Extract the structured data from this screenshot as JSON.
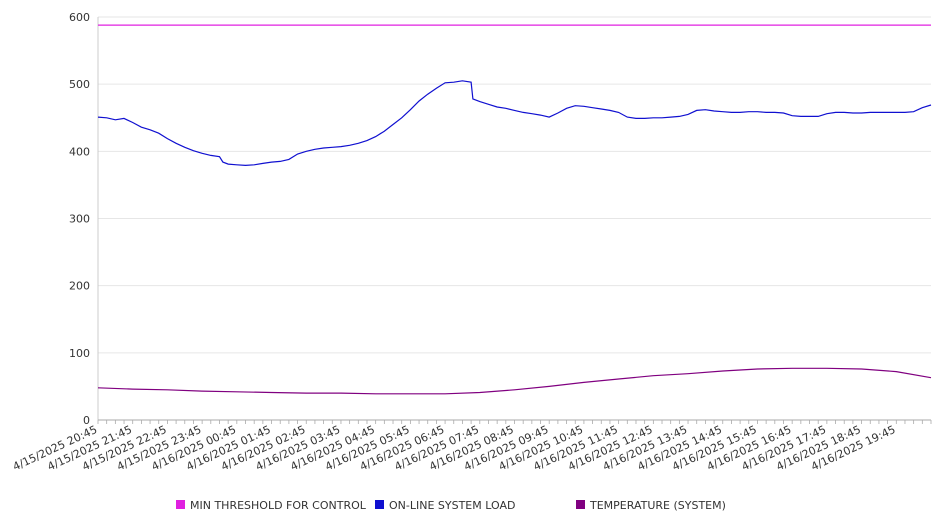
{
  "chart_data": {
    "type": "line",
    "ylim": [
      0,
      600
    ],
    "yticks": [
      0,
      100,
      200,
      300,
      400,
      500,
      600
    ],
    "x_tick_labels": [
      "4/15/2025 20:45",
      "4/15/2025 21:45",
      "4/15/2025 22:45",
      "4/15/2025 23:45",
      "4/16/2025 00:45",
      "4/16/2025 01:45",
      "4/16/2025 02:45",
      "4/16/2025 03:45",
      "4/16/2025 04:45",
      "4/16/2025 05:45",
      "4/16/2025 06:45",
      "4/16/2025 07:45",
      "4/16/2025 08:45",
      "4/16/2025 09:45",
      "4/16/2025 10:45",
      "4/16/2025 11:45",
      "4/16/2025 12:45",
      "4/16/2025 13:45",
      "4/16/2025 14:45",
      "4/16/2025 15:45",
      "4/16/2025 16:45",
      "4/16/2025 17:45",
      "4/16/2025 18:45",
      "4/16/2025 19:45"
    ],
    "x_hours_span": 24,
    "grid": true,
    "legend_position": "bottom",
    "series": [
      {
        "name": "MIN THRESHOLD FOR CONTROL",
        "color": "#e020e0",
        "points": [
          [
            0,
            588
          ],
          [
            24,
            588
          ]
        ]
      },
      {
        "name": "ON-LINE SYSTEM LOAD",
        "color": "#1010d0",
        "points": [
          [
            0,
            451
          ],
          [
            0.25,
            450
          ],
          [
            0.5,
            447
          ],
          [
            0.75,
            449
          ],
          [
            1,
            443
          ],
          [
            1.25,
            436
          ],
          [
            1.5,
            432
          ],
          [
            1.75,
            427
          ],
          [
            2,
            419
          ],
          [
            2.25,
            412
          ],
          [
            2.5,
            406
          ],
          [
            2.75,
            401
          ],
          [
            3,
            397
          ],
          [
            3.25,
            394
          ],
          [
            3.5,
            392
          ],
          [
            3.6,
            384
          ],
          [
            3.75,
            381
          ],
          [
            4,
            380
          ],
          [
            4.25,
            379
          ],
          [
            4.5,
            380
          ],
          [
            4.75,
            382
          ],
          [
            5,
            384
          ],
          [
            5.25,
            385
          ],
          [
            5.5,
            388
          ],
          [
            5.75,
            396
          ],
          [
            6,
            400
          ],
          [
            6.25,
            403
          ],
          [
            6.5,
            405
          ],
          [
            6.75,
            406
          ],
          [
            7,
            407
          ],
          [
            7.25,
            409
          ],
          [
            7.5,
            412
          ],
          [
            7.75,
            416
          ],
          [
            8,
            422
          ],
          [
            8.25,
            430
          ],
          [
            8.5,
            440
          ],
          [
            8.75,
            450
          ],
          [
            9,
            462
          ],
          [
            9.25,
            475
          ],
          [
            9.5,
            485
          ],
          [
            9.75,
            494
          ],
          [
            10,
            502
          ],
          [
            10.25,
            503
          ],
          [
            10.5,
            505
          ],
          [
            10.75,
            503
          ],
          [
            10.8,
            478
          ],
          [
            11,
            474
          ],
          [
            11.25,
            470
          ],
          [
            11.5,
            466
          ],
          [
            11.75,
            464
          ],
          [
            12,
            461
          ],
          [
            12.25,
            458
          ],
          [
            12.5,
            456
          ],
          [
            12.75,
            454
          ],
          [
            13,
            451
          ],
          [
            13.25,
            457
          ],
          [
            13.5,
            464
          ],
          [
            13.75,
            468
          ],
          [
            14,
            467
          ],
          [
            14.25,
            465
          ],
          [
            14.5,
            463
          ],
          [
            14.75,
            461
          ],
          [
            15,
            458
          ],
          [
            15.25,
            451
          ],
          [
            15.5,
            449
          ],
          [
            15.75,
            449
          ],
          [
            16,
            450
          ],
          [
            16.25,
            450
          ],
          [
            16.5,
            451
          ],
          [
            16.75,
            452
          ],
          [
            17,
            455
          ],
          [
            17.25,
            461
          ],
          [
            17.5,
            462
          ],
          [
            17.75,
            460
          ],
          [
            18,
            459
          ],
          [
            18.25,
            458
          ],
          [
            18.5,
            458
          ],
          [
            18.75,
            459
          ],
          [
            19,
            459
          ],
          [
            19.25,
            458
          ],
          [
            19.5,
            458
          ],
          [
            19.75,
            457
          ],
          [
            20,
            453
          ],
          [
            20.25,
            452
          ],
          [
            20.5,
            452
          ],
          [
            20.75,
            452
          ],
          [
            21,
            456
          ],
          [
            21.25,
            458
          ],
          [
            21.5,
            458
          ],
          [
            21.75,
            457
          ],
          [
            22,
            457
          ],
          [
            22.25,
            458
          ],
          [
            22.5,
            458
          ],
          [
            22.75,
            458
          ],
          [
            23,
            458
          ],
          [
            23.25,
            458
          ],
          [
            23.5,
            459
          ],
          [
            23.75,
            465
          ],
          [
            24,
            469
          ]
        ]
      },
      {
        "name": "TEMPERATURE (SYSTEM)",
        "color": "#800080",
        "points": [
          [
            0,
            48
          ],
          [
            1,
            46
          ],
          [
            2,
            45
          ],
          [
            3,
            43
          ],
          [
            4,
            42
          ],
          [
            5,
            41
          ],
          [
            6,
            40
          ],
          [
            7,
            40
          ],
          [
            8,
            39
          ],
          [
            9,
            39
          ],
          [
            10,
            39
          ],
          [
            11,
            41
          ],
          [
            12,
            45
          ],
          [
            13,
            50
          ],
          [
            14,
            56
          ],
          [
            15,
            61
          ],
          [
            16,
            66
          ],
          [
            17,
            69
          ],
          [
            18,
            73
          ],
          [
            19,
            76
          ],
          [
            20,
            77
          ],
          [
            21,
            77
          ],
          [
            22,
            76
          ],
          [
            23,
            72
          ],
          [
            24,
            63
          ]
        ]
      }
    ]
  }
}
